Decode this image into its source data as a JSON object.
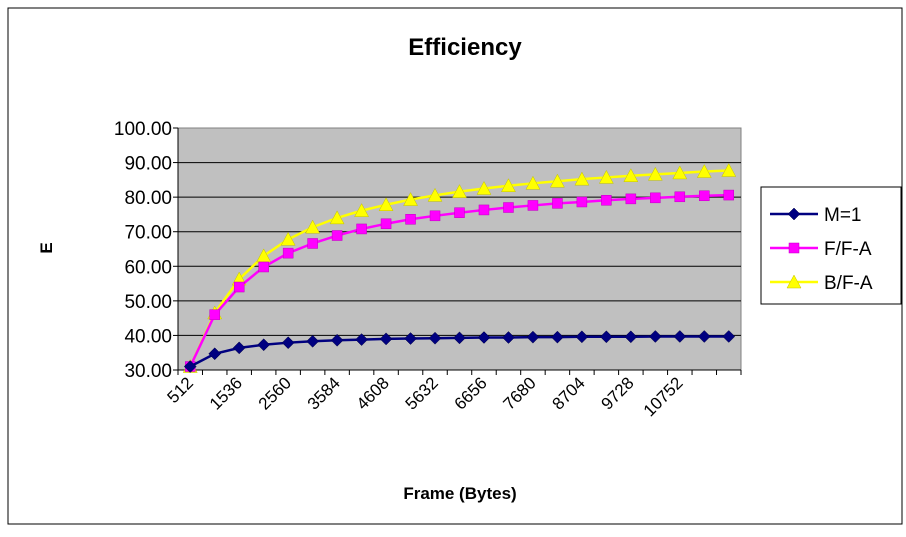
{
  "chart_data": {
    "type": "line",
    "title": "Efficiency",
    "xlabel": "Frame (Bytes)",
    "ylabel": "E",
    "ylim": [
      30,
      100
    ],
    "yticks": [
      "30.00",
      "40.00",
      "50.00",
      "60.00",
      "70.00",
      "80.00",
      "90.00",
      "100.00"
    ],
    "x": [
      512,
      1024,
      1536,
      2048,
      2560,
      3072,
      3584,
      4096,
      4608,
      5120,
      5632,
      6144,
      6656,
      7168,
      7680,
      8192,
      8704,
      9216,
      9728,
      10240,
      10752,
      11264,
      11776
    ],
    "xtick_labels": [
      "512",
      "1536",
      "2560",
      "3584",
      "4608",
      "5632",
      "6656",
      "7680",
      "8704",
      "9728",
      "10752"
    ],
    "grid": "horizontal",
    "legend_position": "right",
    "plot_background": "#c0c0c0",
    "series": [
      {
        "name": "M=1",
        "color": "#000080",
        "marker": "diamond",
        "values": [
          31.0,
          34.7,
          36.4,
          37.3,
          37.9,
          38.3,
          38.6,
          38.8,
          39.0,
          39.1,
          39.2,
          39.3,
          39.4,
          39.4,
          39.5,
          39.5,
          39.6,
          39.6,
          39.6,
          39.7,
          39.7,
          39.7,
          39.7
        ]
      },
      {
        "name": "F/F-A",
        "color": "#ff00ff",
        "marker": "square",
        "values": [
          31.0,
          46.0,
          54.0,
          59.8,
          63.8,
          66.6,
          68.9,
          70.8,
          72.3,
          73.6,
          74.6,
          75.5,
          76.3,
          77.0,
          77.6,
          78.2,
          78.6,
          79.1,
          79.5,
          79.8,
          80.1,
          80.4,
          80.6
        ]
      },
      {
        "name": "B/F-A",
        "color": "#ffff00",
        "marker": "triangle",
        "values": [
          31.0,
          46.5,
          56.3,
          63.0,
          67.8,
          71.3,
          74.0,
          76.1,
          77.8,
          79.3,
          80.5,
          81.6,
          82.5,
          83.3,
          84.0,
          84.6,
          85.2,
          85.7,
          86.2,
          86.6,
          87.0,
          87.4,
          87.7
        ]
      }
    ]
  }
}
